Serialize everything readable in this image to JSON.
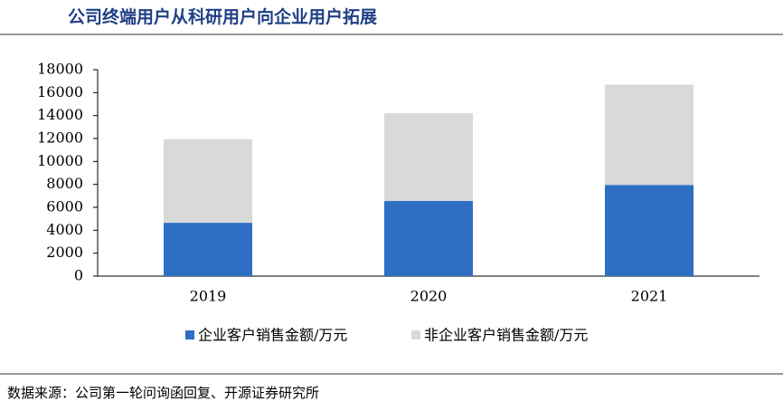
{
  "chart_data": {
    "type": "bar",
    "stacked": true,
    "title": "公司终端用户从科研用户向企业用户拓展",
    "source": "数据来源：公司第一轮问询函回复、开源证券研究所",
    "categories": [
      "2019",
      "2020",
      "2021"
    ],
    "series": [
      {
        "name": "企业客户销售金额/万元",
        "color": "#2e6fc4",
        "values": [
          4650,
          6550,
          7950
        ]
      },
      {
        "name": "非企业客户销售金额/万元",
        "color": "#d9d9d9",
        "values": [
          7300,
          7650,
          8750
        ]
      }
    ],
    "ylim": [
      0,
      18000
    ],
    "yticks": [
      0,
      2000,
      4000,
      6000,
      8000,
      10000,
      12000,
      14000,
      16000,
      18000
    ],
    "grid": false
  }
}
